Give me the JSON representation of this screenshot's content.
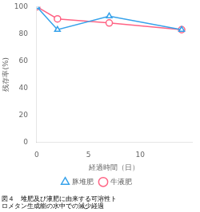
{
  "chart_data": {
    "type": "line",
    "xlabel": "経過時間（日）",
    "ylabel": "残存率(%)",
    "annotations": [
      "図４　堆肥及び液肥に由来する可溶性ト",
      "ロメタン生成能の水中での減少経過"
    ],
    "x": [
      0,
      2,
      7,
      14
    ],
    "series": [
      {
        "name": "豚堆肥",
        "values": [
          100,
          83,
          93,
          83
        ],
        "marker": "triangle",
        "line_style": "solid"
      },
      {
        "name": "牛液肥",
        "values": [
          100,
          91,
          88,
          83
        ],
        "marker": "circle",
        "line_style": "solid"
      }
    ],
    "xlim": [
      0,
      15
    ],
    "xticks": [
      0,
      5,
      10
    ],
    "ylim": [
      0,
      100
    ],
    "yticks": [
      0,
      20,
      40,
      60,
      80,
      100
    ],
    "grid": false,
    "legend": "bottom"
  }
}
